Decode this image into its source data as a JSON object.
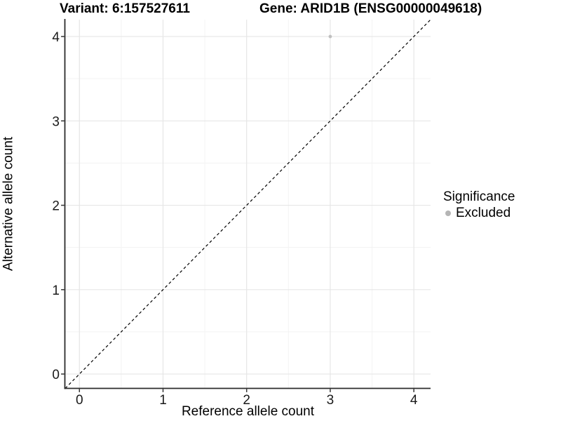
{
  "chart_data": {
    "type": "scatter",
    "title_left": "Variant: 6:157527611",
    "title_right": "Gene: ARID1B (ENSG00000049618)",
    "xlabel": "Reference allele count",
    "ylabel": "Alternative allele count",
    "xlim": [
      -0.17,
      4.2
    ],
    "ylim": [
      -0.17,
      4.2
    ],
    "xticks": [
      0,
      1,
      2,
      3,
      4
    ],
    "yticks": [
      0,
      1,
      2,
      3,
      4
    ],
    "grid": "major and minor, on",
    "points": [
      {
        "x": 3,
        "y": 4,
        "series": "Excluded"
      }
    ],
    "reference_line": {
      "type": "identity y=x",
      "style": "dashed",
      "color": "#000000"
    },
    "legend": {
      "title": "Significance",
      "position": "right",
      "entries": [
        {
          "label": "Excluded",
          "color": "#b5b5b5"
        }
      ]
    },
    "colors": {
      "background": "#ffffff",
      "point": "#bfbfbf",
      "grid_major": "#e6e6e6",
      "grid_minor": "#f3f3f3",
      "axis_line": "#2b2b2b",
      "tick_mark": "#333333",
      "tick_label": "#1a1a1a",
      "text": "#000000"
    }
  }
}
